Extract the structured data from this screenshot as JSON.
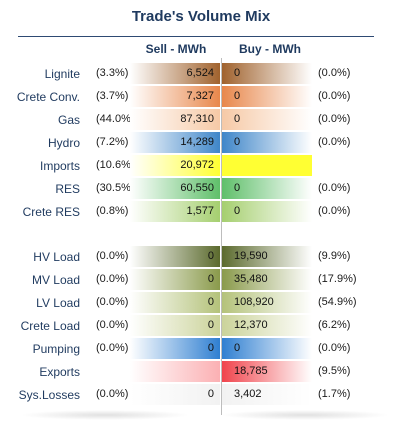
{
  "title": "Trade's Volume Mix",
  "headers": {
    "sell": "Sell - MWh",
    "buy": "Buy - MWh"
  },
  "rows": [
    {
      "label": "Lignite",
      "sell_pct": "(3.3%)",
      "sell": "6,524",
      "buy": "0",
      "buy_pct": "(0.0%)",
      "color": "#a0622d"
    },
    {
      "label": "Crete Conv.",
      "sell_pct": "(3.7%)",
      "sell": "7,327",
      "buy": "0",
      "buy_pct": "(0.0%)",
      "color": "#e8874b"
    },
    {
      "label": "Gas",
      "sell_pct": "(44.0%)",
      "sell": "87,310",
      "buy": "0",
      "buy_pct": "(0.0%)",
      "color": "#f6c9a6"
    },
    {
      "label": "Hydro",
      "sell_pct": "(7.2%)",
      "sell": "14,289",
      "buy": "0",
      "buy_pct": "(0.0%)",
      "color": "#3f86c9"
    },
    {
      "label": "Imports",
      "sell_pct": "(10.6%)",
      "sell": "20,972",
      "buy": "",
      "buy_pct": "",
      "color": "#ffff33"
    },
    {
      "label": "RES",
      "sell_pct": "(30.5%)",
      "sell": "60,550",
      "buy": "0",
      "buy_pct": "(0.0%)",
      "color": "#5fbf6a"
    },
    {
      "label": "Crete RES",
      "sell_pct": "(0.8%)",
      "sell": "1,577",
      "buy": "0",
      "buy_pct": "(0.0%)",
      "color": "#a5cf6f"
    },
    {
      "label": "HV Load",
      "sell_pct": "(0.0%)",
      "sell": "0",
      "buy": "19,590",
      "buy_pct": "(9.9%)",
      "color": "#5b6a2d"
    },
    {
      "label": "MV Load",
      "sell_pct": "(0.0%)",
      "sell": "0",
      "buy": "35,480",
      "buy_pct": "(17.9%)",
      "color": "#8a9a4b"
    },
    {
      "label": "LV Load",
      "sell_pct": "(0.0%)",
      "sell": "0",
      "buy": "108,920",
      "buy_pct": "(54.9%)",
      "color": "#b4c27a"
    },
    {
      "label": "Crete Load",
      "sell_pct": "(0.0%)",
      "sell": "0",
      "buy": "12,370",
      "buy_pct": "(6.2%)",
      "color": "#cbd39a"
    },
    {
      "label": "Pumping",
      "sell_pct": "(0.0%)",
      "sell": "0",
      "buy": "0",
      "buy_pct": "(0.0%)",
      "color": "#2f7fd1"
    },
    {
      "label": "Exports",
      "sell_pct": "",
      "sell": "",
      "buy": "18,785",
      "buy_pct": "(9.5%)",
      "color": "#f0444c"
    },
    {
      "label": "Sys.Losses",
      "sell_pct": "(0.0%)",
      "sell": "0",
      "buy": "3,402",
      "buy_pct": "(1.7%)",
      "color": "#d9d9d9"
    }
  ]
}
